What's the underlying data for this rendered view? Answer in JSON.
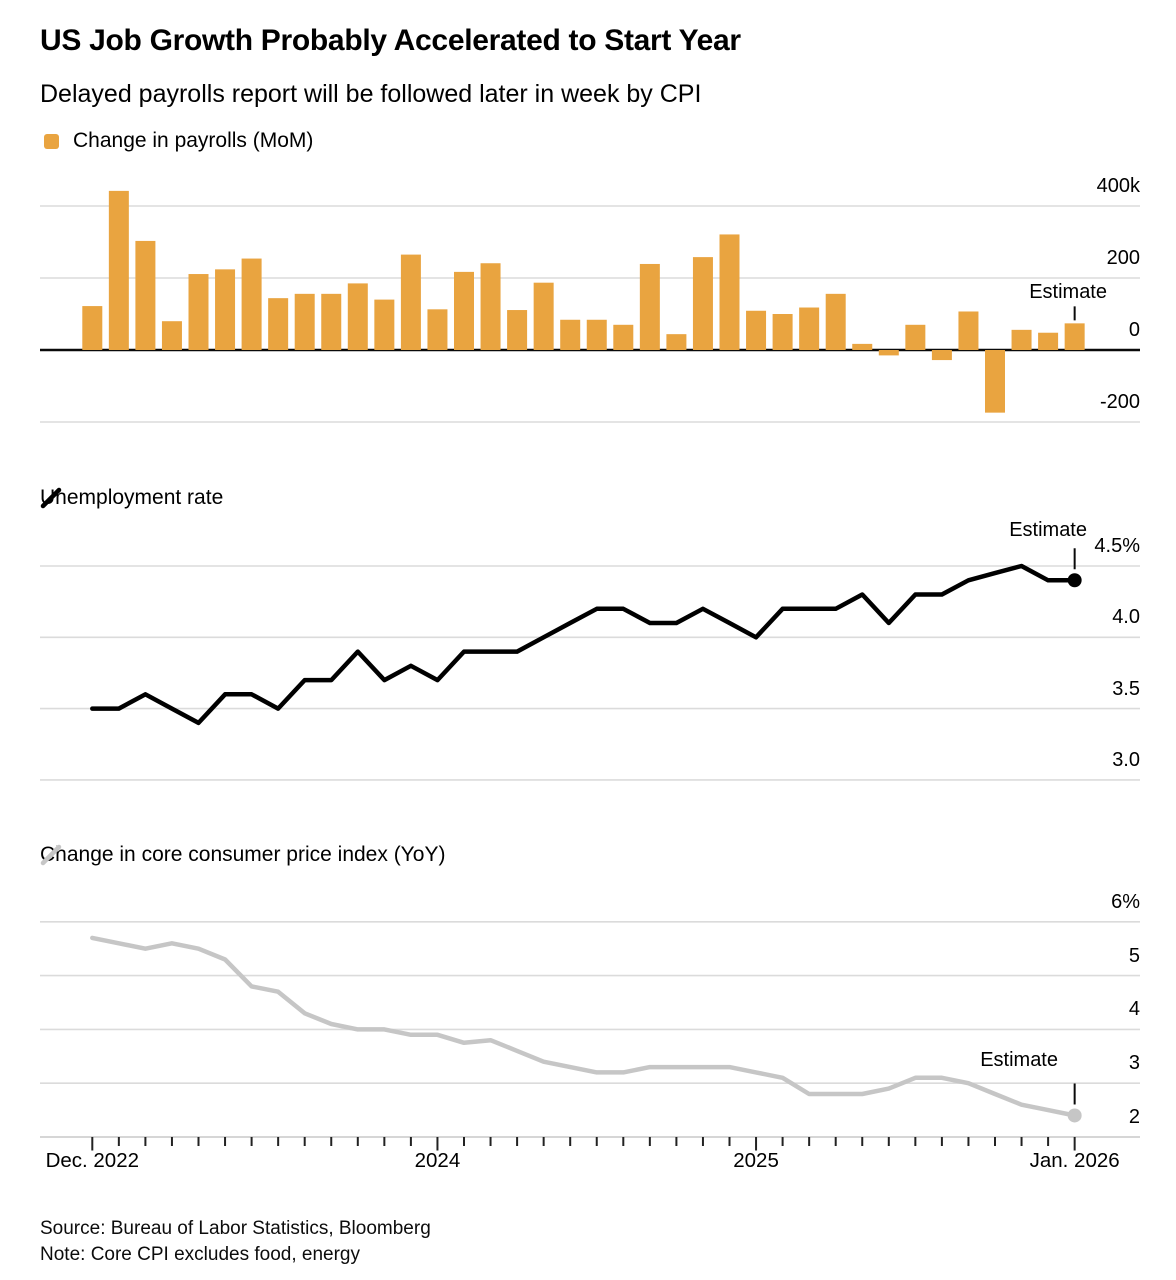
{
  "header": {
    "title": "US Job Growth Probably Accelerated to Start Year",
    "subtitle": "Delayed payrolls report will be followed later in week by CPI"
  },
  "colors": {
    "bars": "#E9A440",
    "unemployment_line": "#000000",
    "cpi_line": "#C6C6C6"
  },
  "x_axis": {
    "labels": [
      "Dec. 2022",
      "2024",
      "2025",
      "Jan. 2026"
    ],
    "tick_indices": [
      0,
      13,
      25,
      37
    ]
  },
  "footer": {
    "source": "Source: Bureau of Labor Statistics, Bloomberg",
    "note": "Note: Core CPI excludes food, energy"
  },
  "chart_data": [
    {
      "id": "payrolls",
      "type": "bar",
      "legend": "Change in payrolls (MoM)",
      "unit": "thousands of jobs",
      "months": [
        "Dec 2022",
        "Jan 2023",
        "Feb 2023",
        "Mar 2023",
        "Apr 2023",
        "May 2023",
        "Jun 2023",
        "Jul 2023",
        "Aug 2023",
        "Sep 2023",
        "Oct 2023",
        "Nov 2023",
        "Dec 2023",
        "Jan 2024",
        "Feb 2024",
        "Mar 2024",
        "Apr 2024",
        "May 2024",
        "Jun 2024",
        "Jul 2024",
        "Aug 2024",
        "Sep 2024",
        "Oct 2024",
        "Nov 2024",
        "Dec 2024",
        "Jan 2025",
        "Feb 2025",
        "Mar 2025",
        "Apr 2025",
        "May 2025",
        "Jun 2025",
        "Jul 2025",
        "Aug 2025",
        "Sep 2025",
        "Oct 2025",
        "Nov 2025",
        "Dec 2025",
        "Jan 2026"
      ],
      "values": [
        122,
        442,
        303,
        80,
        211,
        224,
        254,
        144,
        156,
        156,
        185,
        140,
        265,
        113,
        217,
        241,
        111,
        187,
        84,
        84,
        70,
        239,
        44,
        258,
        321,
        109,
        100,
        118,
        156,
        17,
        -15,
        70,
        -28,
        107,
        -174,
        56,
        48,
        74
      ],
      "yticks": [
        {
          "label": "400k",
          "value": 400
        },
        {
          "label": "200",
          "value": 200
        },
        {
          "label": "0",
          "value": 0
        },
        {
          "label": "-200",
          "value": -200
        }
      ],
      "estimate": {
        "label": "Estimate",
        "index": 37,
        "value": 74
      }
    },
    {
      "id": "unemployment",
      "type": "line",
      "legend": "Unemployment rate",
      "unit": "percent",
      "months": [
        "Dec 2022",
        "Jan 2023",
        "Feb 2023",
        "Mar 2023",
        "Apr 2023",
        "May 2023",
        "Jun 2023",
        "Jul 2023",
        "Aug 2023",
        "Sep 2023",
        "Oct 2023",
        "Nov 2023",
        "Dec 2023",
        "Jan 2024",
        "Feb 2024",
        "Mar 2024",
        "Apr 2024",
        "May 2024",
        "Jun 2024",
        "Jul 2024",
        "Aug 2024",
        "Sep 2024",
        "Oct 2024",
        "Nov 2024",
        "Dec 2024",
        "Jan 2025",
        "Feb 2025",
        "Mar 2025",
        "Apr 2025",
        "May 2025",
        "Jun 2025",
        "Jul 2025",
        "Aug 2025",
        "Sep 2025",
        "Oct 2025",
        "Nov 2025",
        "Dec 2025",
        "Jan 2026"
      ],
      "values": [
        3.5,
        3.5,
        3.6,
        3.5,
        3.4,
        3.6,
        3.6,
        3.5,
        3.7,
        3.7,
        3.9,
        3.7,
        3.8,
        3.7,
        3.9,
        3.9,
        3.9,
        4.0,
        4.1,
        4.2,
        4.2,
        4.1,
        4.1,
        4.2,
        4.1,
        4.0,
        4.2,
        4.2,
        4.2,
        4.3,
        4.1,
        4.3,
        4.3,
        4.4,
        4.45,
        4.5,
        4.4,
        4.4
      ],
      "yticks": [
        {
          "label": "4.5%",
          "value": 4.5
        },
        {
          "label": "4.0",
          "value": 4.0
        },
        {
          "label": "3.5",
          "value": 3.5
        },
        {
          "label": "3.0",
          "value": 3.0
        }
      ],
      "estimate": {
        "label": "Estimate",
        "index": 37,
        "value": 4.4
      }
    },
    {
      "id": "core_cpi",
      "type": "line",
      "legend": "Change in core consumer price index (YoY)",
      "unit": "percent",
      "months": [
        "Dec 2022",
        "Jan 2023",
        "Feb 2023",
        "Mar 2023",
        "Apr 2023",
        "May 2023",
        "Jun 2023",
        "Jul 2023",
        "Aug 2023",
        "Sep 2023",
        "Oct 2023",
        "Nov 2023",
        "Dec 2023",
        "Jan 2024",
        "Feb 2024",
        "Mar 2024",
        "Apr 2024",
        "May 2024",
        "Jun 2024",
        "Jul 2024",
        "Aug 2024",
        "Sep 2024",
        "Oct 2024",
        "Nov 2024",
        "Dec 2024",
        "Jan 2025",
        "Feb 2025",
        "Mar 2025",
        "Apr 2025",
        "May 2025",
        "Jun 2025",
        "Jul 2025",
        "Aug 2025",
        "Sep 2025",
        "Oct 2025",
        "Nov 2025",
        "Dec 2025",
        "Jan 2026"
      ],
      "values": [
        5.7,
        5.6,
        5.5,
        5.6,
        5.5,
        5.3,
        4.8,
        4.7,
        4.3,
        4.1,
        4.0,
        4.0,
        3.9,
        3.9,
        3.75,
        3.8,
        3.6,
        3.4,
        3.3,
        3.2,
        3.2,
        3.3,
        3.3,
        3.3,
        3.3,
        3.2,
        3.1,
        2.8,
        2.8,
        2.8,
        2.9,
        3.1,
        3.1,
        3.0,
        2.8,
        2.6,
        2.5,
        2.4
      ],
      "yticks": [
        {
          "label": "6%",
          "value": 6
        },
        {
          "label": "5",
          "value": 5
        },
        {
          "label": "4",
          "value": 4
        },
        {
          "label": "3",
          "value": 3
        },
        {
          "label": "2",
          "value": 2
        }
      ],
      "estimate": {
        "label": "Estimate",
        "index": 37,
        "value": 2.4
      }
    }
  ]
}
